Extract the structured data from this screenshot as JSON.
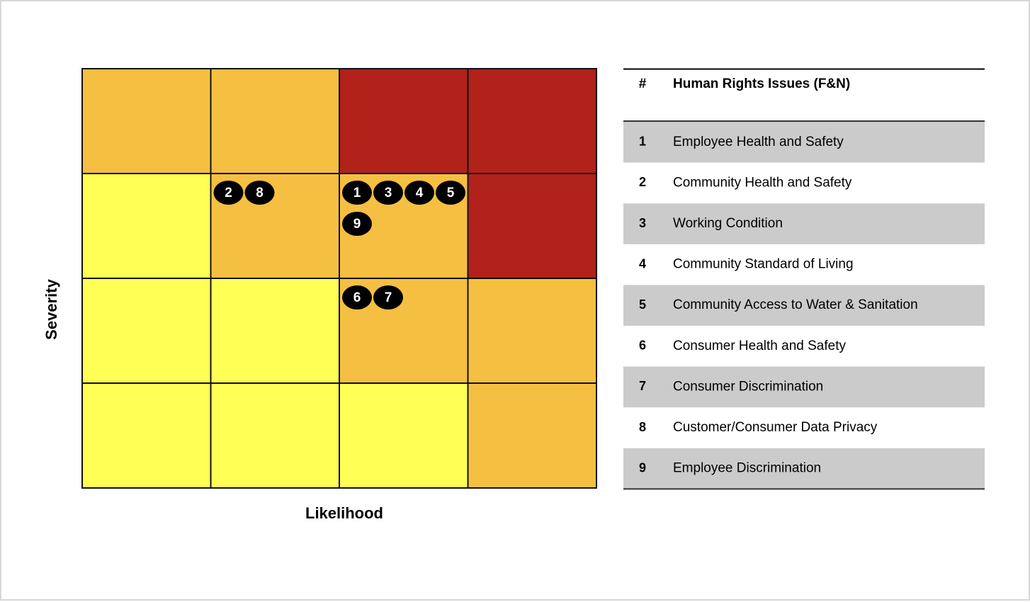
{
  "matrix": {
    "x_label": "Likelihood",
    "y_label": "Severity",
    "rows": [
      [
        {
          "color": "#f5bf42"
        },
        {
          "color": "#f5bf42"
        },
        {
          "color": "#b0221a"
        },
        {
          "color": "#b0221a"
        }
      ],
      [
        {
          "color": "#ffff55"
        },
        {
          "color": "#f5bf42",
          "markers": [
            "2",
            "8"
          ]
        },
        {
          "color": "#f5bf42",
          "markers": [
            "1",
            "3",
            "4",
            "5",
            "9"
          ]
        },
        {
          "color": "#b0221a"
        }
      ],
      [
        {
          "color": "#ffff55"
        },
        {
          "color": "#ffff55"
        },
        {
          "color": "#f5bf42",
          "markers": [
            "6",
            "7"
          ]
        },
        {
          "color": "#f5bf42"
        }
      ],
      [
        {
          "color": "#ffff55"
        },
        {
          "color": "#ffff55"
        },
        {
          "color": "#ffff55"
        },
        {
          "color": "#f5bf42"
        }
      ]
    ]
  },
  "table": {
    "header": [
      "#",
      "Human Rights Issues (F&N)"
    ],
    "rows": [
      [
        "1",
        "Employee Health and Safety"
      ],
      [
        "2",
        "Community Health and Safety"
      ],
      [
        "3",
        "Working Condition"
      ],
      [
        "4",
        "Community Standard of Living"
      ],
      [
        "5",
        "Community Access to Water & Sanitation"
      ],
      [
        "6",
        "Consumer Health and Safety"
      ],
      [
        "7",
        "Consumer Discrimination"
      ],
      [
        "8",
        "Customer/Consumer Data Privacy"
      ],
      [
        "9",
        "Employee Discrimination"
      ]
    ]
  }
}
